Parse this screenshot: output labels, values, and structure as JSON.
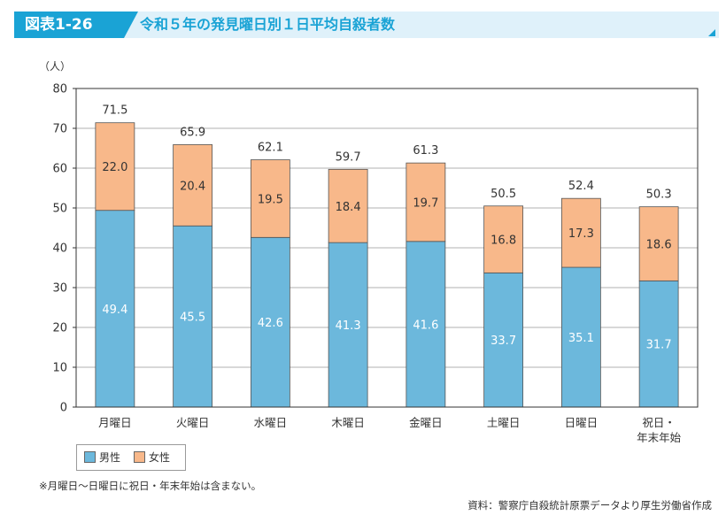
{
  "header": {
    "figure_number": "図表1-26",
    "title": "令和５年の発見曜日別１日平均自殺者数",
    "badge_color": "#1aa3d5",
    "band_color": "#dff1fa"
  },
  "chart_data": {
    "type": "bar",
    "stacked": true,
    "title": "令和５年の発見曜日別１日平均自殺者数",
    "ylabel": "（人）",
    "xlabel": "",
    "ylim": [
      0,
      80
    ],
    "yticks": [
      0,
      10,
      20,
      30,
      40,
      50,
      60,
      70,
      80
    ],
    "grid": true,
    "categories": [
      "月曜日",
      "火曜日",
      "水曜日",
      "木曜日",
      "金曜日",
      "土曜日",
      "日曜日",
      "祝日・\n年末年始"
    ],
    "series": [
      {
        "name": "男性",
        "color": "#6cb8dc",
        "values": [
          49.4,
          45.5,
          42.6,
          41.3,
          41.6,
          33.7,
          35.1,
          31.7
        ]
      },
      {
        "name": "女性",
        "color": "#f8b88a",
        "values": [
          22.0,
          20.4,
          19.5,
          18.4,
          19.7,
          16.8,
          17.3,
          18.6
        ]
      }
    ],
    "totals": [
      71.5,
      65.9,
      62.1,
      59.7,
      61.3,
      50.5,
      52.4,
      50.3
    ],
    "legend_position": "bottom-left"
  },
  "legend": {
    "items": [
      {
        "label": "男性",
        "color": "#6cb8dc"
      },
      {
        "label": "女性",
        "color": "#f8b88a"
      }
    ]
  },
  "footer": {
    "note": "※月曜日～日曜日に祝日・年末年始は含まない。",
    "source": "資料：警察庁自殺統計原票データより厚生労働省作成"
  }
}
